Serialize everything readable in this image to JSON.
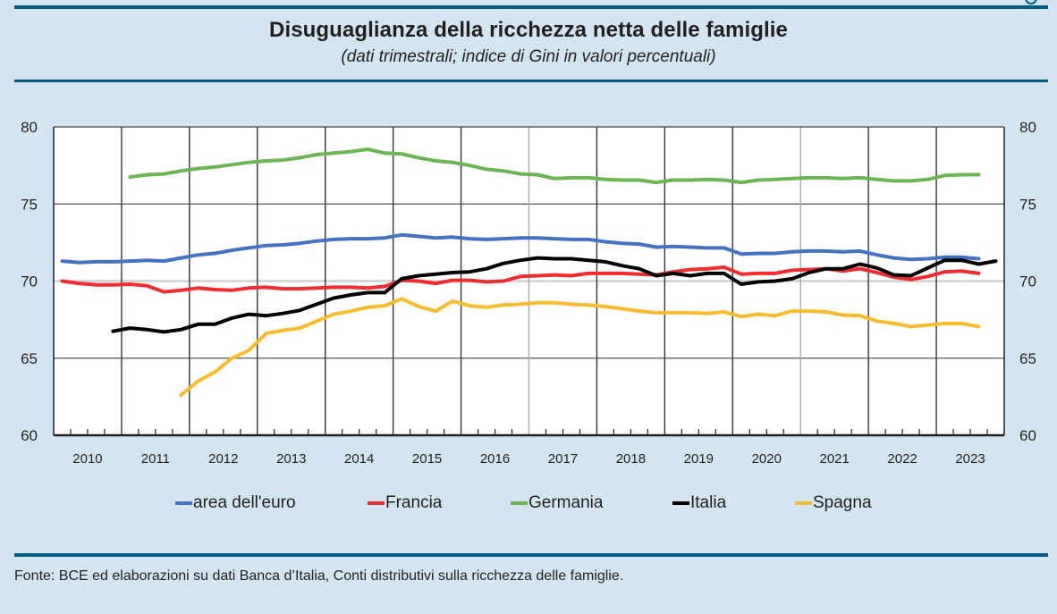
{
  "header": {
    "title": "Disuguaglianza della ricchezza netta delle famiglie",
    "subtitle": "(dati trimestrali; indice di Gini in valori percentuali)"
  },
  "footer": {
    "source": "Fonte: BCE ed elaborazioni su dati Banca d’Italia, Conti distributivi sulla ricchezza delle famiglie."
  },
  "chart_data": {
    "type": "line",
    "title": "Disuguaglianza della ricchezza netta delle famiglie",
    "subtitle": "(dati trimestrali; indice di Gini in valori percentuali)",
    "xlabel": "",
    "ylabel": "",
    "frequency": "quarterly",
    "x_start": "2010Q1",
    "x_end": "2023Q4",
    "x_tick_labels": [
      "2010",
      "2011",
      "2012",
      "2013",
      "2014",
      "2015",
      "2016",
      "2017",
      "2018",
      "2019",
      "2020",
      "2021",
      "2022",
      "2023"
    ],
    "ylim": [
      60,
      80
    ],
    "y_ticks": [
      60,
      65,
      70,
      75,
      80
    ],
    "y_tick_labels": [
      "60",
      "65",
      "70",
      "75",
      "80"
    ],
    "y_axis_sides": [
      "left",
      "right"
    ],
    "grid": true,
    "legend_position": "bottom",
    "series": [
      {
        "name": "area dell'euro",
        "color": "#4472c4",
        "values": [
          71.3,
          71.2,
          71.25,
          71.25,
          71.3,
          71.35,
          71.3,
          71.5,
          71.7,
          71.8,
          72.0,
          72.15,
          72.3,
          72.35,
          72.45,
          72.6,
          72.7,
          72.75,
          72.75,
          72.8,
          73.0,
          72.9,
          72.8,
          72.85,
          72.75,
          72.7,
          72.75,
          72.8,
          72.8,
          72.75,
          72.7,
          72.7,
          72.55,
          72.45,
          72.4,
          72.2,
          72.25,
          72.2,
          72.15,
          72.15,
          71.75,
          71.8,
          71.8,
          71.9,
          71.95,
          71.95,
          71.9,
          71.95,
          71.7,
          71.5,
          71.4,
          71.45,
          71.55,
          71.55,
          71.45,
          null
        ]
      },
      {
        "name": "Francia",
        "color": "#ee2d30",
        "values": [
          70.0,
          69.85,
          69.75,
          69.75,
          69.8,
          69.7,
          69.3,
          69.4,
          69.55,
          69.45,
          69.4,
          69.55,
          69.6,
          69.5,
          69.5,
          69.55,
          69.6,
          69.6,
          69.55,
          69.65,
          70.05,
          70.0,
          69.85,
          70.05,
          70.05,
          69.95,
          70.0,
          70.3,
          70.35,
          70.4,
          70.35,
          70.5,
          70.5,
          70.5,
          70.45,
          70.4,
          70.6,
          70.75,
          70.8,
          70.9,
          70.45,
          70.5,
          70.5,
          70.7,
          70.75,
          70.8,
          70.65,
          70.8,
          70.55,
          70.25,
          70.1,
          70.3,
          70.6,
          70.65,
          70.5,
          null
        ]
      },
      {
        "name": "Germania",
        "color": "#6ab654",
        "values": [
          null,
          null,
          null,
          null,
          76.75,
          76.9,
          76.95,
          77.15,
          77.3,
          77.4,
          77.55,
          77.7,
          77.8,
          77.85,
          78.0,
          78.2,
          78.3,
          78.4,
          78.55,
          78.3,
          78.25,
          78.0,
          77.8,
          77.7,
          77.5,
          77.25,
          77.15,
          76.95,
          76.9,
          76.65,
          76.7,
          76.7,
          76.6,
          76.55,
          76.55,
          76.4,
          76.55,
          76.55,
          76.6,
          76.55,
          76.4,
          76.55,
          76.6,
          76.65,
          76.7,
          76.7,
          76.65,
          76.7,
          76.6,
          76.5,
          76.5,
          76.6,
          76.85,
          76.9,
          76.9,
          null
        ]
      },
      {
        "name": "Italia",
        "color": "#000000",
        "values": [
          null,
          null,
          null,
          66.75,
          66.95,
          66.85,
          66.7,
          66.85,
          67.2,
          67.2,
          67.6,
          67.85,
          67.75,
          67.9,
          68.1,
          68.5,
          68.9,
          69.1,
          69.25,
          69.25,
          70.15,
          70.35,
          70.45,
          70.55,
          70.6,
          70.8,
          71.15,
          71.35,
          71.5,
          71.45,
          71.45,
          71.35,
          71.25,
          71.0,
          70.8,
          70.35,
          70.5,
          70.35,
          70.5,
          70.5,
          69.8,
          69.95,
          70.0,
          70.15,
          70.55,
          70.8,
          70.8,
          71.1,
          70.85,
          70.4,
          70.35,
          70.85,
          71.35,
          71.35,
          71.1,
          71.3
        ]
      },
      {
        "name": "Spagna",
        "color": "#fbbb2f",
        "values": [
          null,
          null,
          null,
          null,
          null,
          null,
          null,
          62.6,
          63.5,
          64.1,
          65.0,
          65.5,
          66.6,
          66.8,
          66.95,
          67.4,
          67.85,
          68.05,
          68.3,
          68.4,
          68.85,
          68.35,
          68.05,
          68.7,
          68.4,
          68.3,
          68.45,
          68.5,
          68.6,
          68.6,
          68.5,
          68.45,
          68.35,
          68.2,
          68.05,
          67.95,
          67.95,
          67.95,
          67.9,
          68.0,
          67.7,
          67.85,
          67.75,
          68.05,
          68.05,
          68.0,
          67.8,
          67.75,
          67.4,
          67.25,
          67.05,
          67.15,
          67.25,
          67.25,
          67.05,
          null
        ]
      }
    ]
  }
}
